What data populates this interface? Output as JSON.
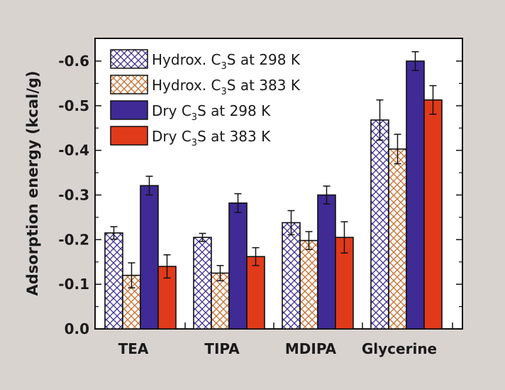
{
  "chart_data": {
    "type": "bar",
    "title": "",
    "xlabel": "",
    "ylabel": "Adsorption energy (kcal/g)",
    "ylim": [
      0.0,
      -0.65
    ],
    "yticks": [
      "0.0",
      "-0.1",
      "-0.2",
      "-0.3",
      "-0.4",
      "-0.5",
      "-0.6"
    ],
    "ytick_values": [
      0.0,
      -0.1,
      -0.2,
      -0.3,
      -0.4,
      -0.5,
      -0.6
    ],
    "categories": [
      "TEA",
      "TIPA",
      "MDIPA",
      "Glycerine"
    ],
    "legend_position": "top-left",
    "series": [
      {
        "name": "Hydrox. C3S at 298 K",
        "legend_prefix": "Hydrox. C",
        "legend_sub": "3",
        "legend_suffix": "S at 298 K",
        "style": "crosshatch",
        "color": "#3d2f8f",
        "values": [
          -0.215,
          -0.205,
          -0.238,
          -0.468
        ],
        "errors": [
          0.014,
          0.009,
          0.027,
          0.045
        ]
      },
      {
        "name": "Hydrox. C3S at 383 K",
        "legend_prefix": "Hydrox. C",
        "legend_sub": "3",
        "legend_suffix": "S at 383 K",
        "style": "crosshatch",
        "color": "#c0703a",
        "values": [
          -0.12,
          -0.125,
          -0.198,
          -0.403
        ],
        "errors": [
          0.028,
          0.017,
          0.02,
          0.033
        ]
      },
      {
        "name": "Dry C3S at 298 K",
        "legend_prefix": "Dry C",
        "legend_sub": "3",
        "legend_suffix": "S at 298 K",
        "style": "solid",
        "color": "#3f2a96",
        "values": [
          -0.321,
          -0.282,
          -0.3,
          -0.6
        ],
        "errors": [
          0.021,
          0.021,
          0.02,
          0.021
        ]
      },
      {
        "name": "Dry C3S at 383 K",
        "legend_prefix": "Dry C",
        "legend_sub": "3",
        "legend_suffix": "S at 383 K",
        "style": "solid",
        "color": "#e03a1a",
        "values": [
          -0.14,
          -0.162,
          -0.205,
          -0.513
        ],
        "errors": [
          0.026,
          0.02,
          0.035,
          0.032
        ]
      }
    ]
  }
}
